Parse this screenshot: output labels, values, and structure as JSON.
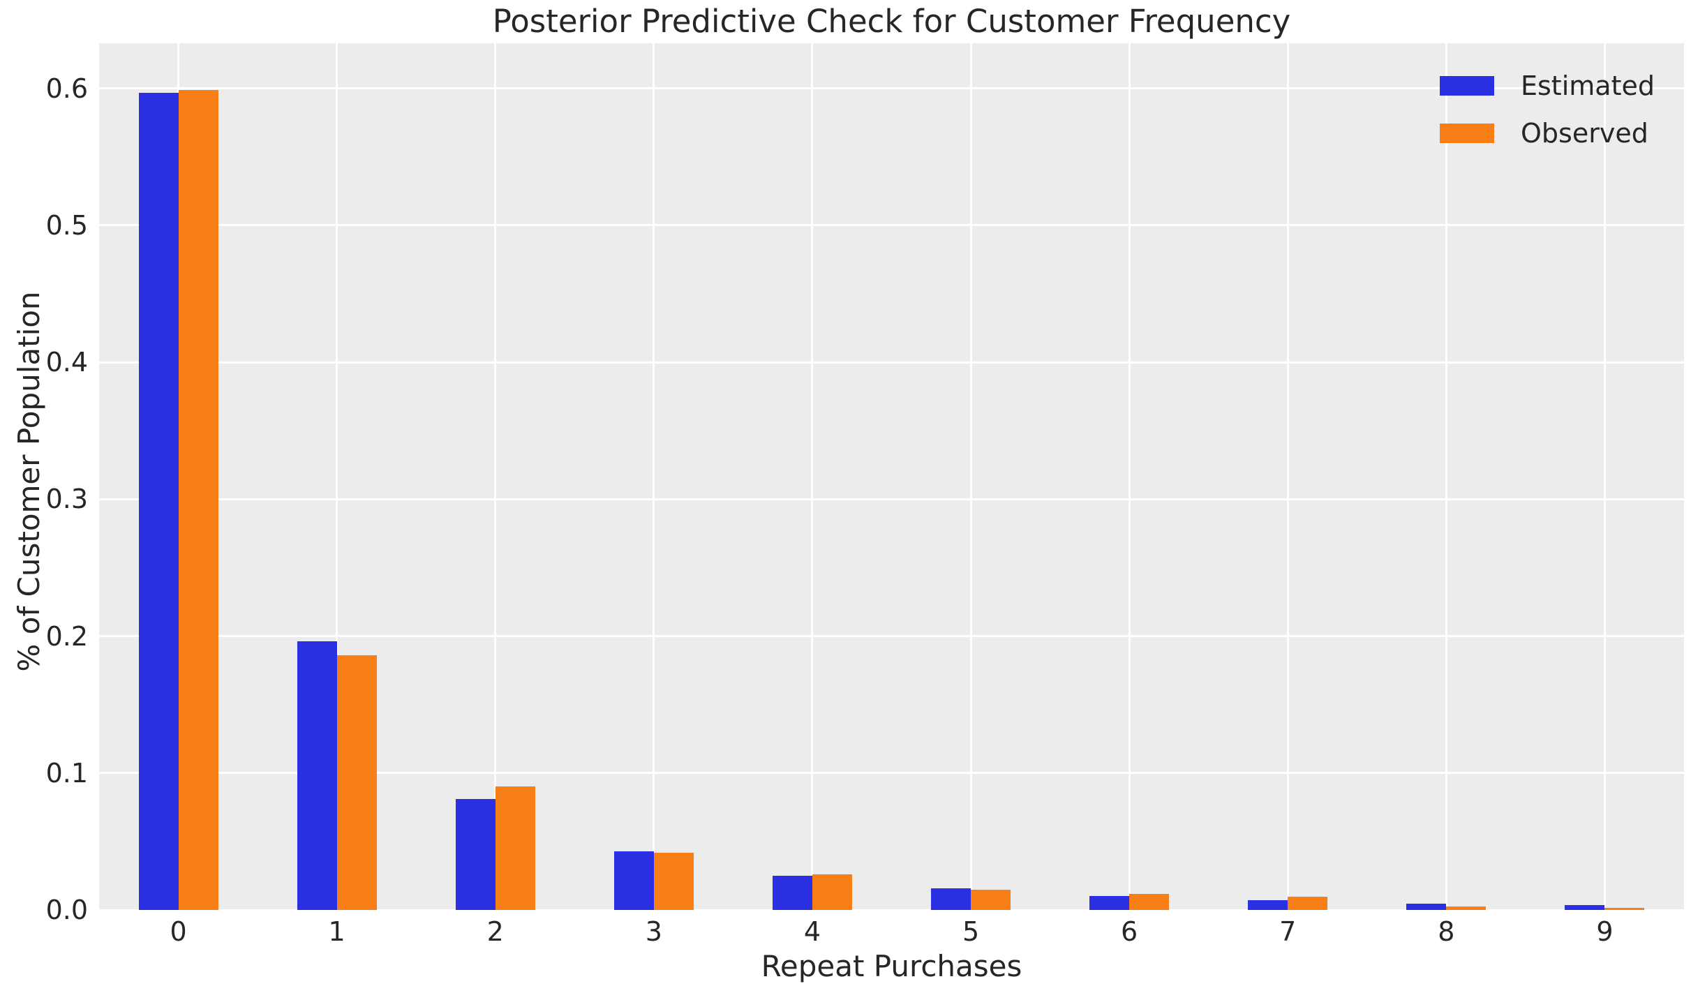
{
  "figure": {
    "background": "#ffffff",
    "axes_background": "#ececec",
    "grid_color": "#ffffff",
    "text_color": "#262626"
  },
  "chart_data": {
    "type": "bar",
    "title": "Posterior Predictive Check for Customer Frequency",
    "xlabel": "Repeat Purchases",
    "ylabel": "% of Customer Population",
    "categories": [
      "0",
      "1",
      "2",
      "3",
      "4",
      "5",
      "6",
      "7",
      "8",
      "9"
    ],
    "series": [
      {
        "name": "Estimated",
        "color": "#2b30e3",
        "values": [
          0.597,
          0.196,
          0.081,
          0.043,
          0.025,
          0.016,
          0.0103,
          0.0071,
          0.0047,
          0.0036
        ]
      },
      {
        "name": "Observed",
        "color": "#f87e17",
        "values": [
          0.599,
          0.186,
          0.09,
          0.042,
          0.026,
          0.015,
          0.0117,
          0.0097,
          0.0024,
          0.0015
        ]
      }
    ],
    "ylim": [
      0,
      0.633
    ],
    "yticks": [
      0,
      0.1,
      0.2,
      0.3,
      0.4,
      0.5,
      0.6
    ],
    "ytick_labels": [
      "0.0",
      "0.1",
      "0.2",
      "0.3",
      "0.4",
      "0.5",
      "0.6"
    ],
    "grid": true,
    "legend_position": "upper right"
  }
}
